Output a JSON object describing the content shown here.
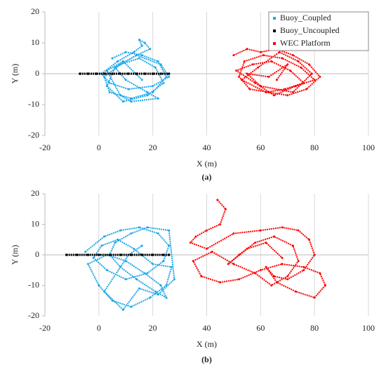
{
  "chart_data": [
    {
      "type": "scatter",
      "xlabel": "X  (m)",
      "ylabel": "Y  (m)",
      "caption": "(a)",
      "xlim": [
        -20,
        100
      ],
      "xticks": [
        -20,
        0,
        20,
        40,
        60,
        80,
        100
      ],
      "ylim": [
        -20,
        20
      ],
      "yticks": [
        -20,
        -10,
        0,
        10,
        20
      ],
      "grid": true,
      "legend": "upper right",
      "series": [
        {
          "name": "Buoy_Coupled",
          "color": "#1ea8e8",
          "x": [
            5,
            10,
            16,
            22,
            25,
            20,
            12,
            4,
            2,
            8,
            15,
            21,
            24,
            18,
            9,
            3,
            6,
            14,
            19,
            17,
            15,
            16,
            13,
            7,
            1,
            4,
            11,
            20,
            26,
            23,
            14,
            6,
            10,
            18,
            22,
            12,
            8,
            3,
            9,
            16
          ],
          "y": [
            5,
            7,
            6,
            4,
            -1,
            -6,
            -8,
            -6,
            -1,
            3,
            5,
            2,
            -3,
            -7,
            -9,
            -4,
            2,
            6,
            8,
            10,
            11,
            9,
            7,
            4,
            0,
            -3,
            -5,
            -4,
            -1,
            3,
            6,
            2,
            -2,
            -6,
            -8,
            -9,
            -7,
            1,
            4,
            -2
          ]
        },
        {
          "name": "Buoy_Uncoupled",
          "color": "#000000",
          "x": [
            -7,
            -4,
            -1,
            2,
            5,
            8,
            11,
            14,
            17,
            20,
            23,
            26
          ],
          "y": [
            0,
            0,
            0,
            0,
            0,
            0,
            0,
            0,
            0,
            0,
            0,
            0
          ]
        },
        {
          "name": "WEC Platform",
          "color": "#ff0000",
          "x": [
            50,
            55,
            60,
            66,
            72,
            78,
            82,
            77,
            70,
            63,
            56,
            52,
            54,
            61,
            68,
            75,
            80,
            73,
            65,
            58,
            51,
            57,
            64,
            71,
            76,
            69,
            62,
            53,
            59,
            67,
            74,
            79,
            72,
            60,
            55,
            63,
            70,
            66
          ],
          "y": [
            6,
            8,
            7,
            8,
            6,
            3,
            -1,
            -5,
            -7,
            -6,
            -5,
            -1,
            4,
            6,
            5,
            2,
            -2,
            -4,
            -7,
            -3,
            1,
            3,
            4,
            1,
            -3,
            -5,
            -6,
            -2,
            2,
            7,
            4,
            0,
            -6,
            -4,
            0,
            -1,
            3,
            -2
          ]
        }
      ]
    },
    {
      "type": "scatter",
      "xlabel": "X (m)",
      "ylabel": "Y (m)",
      "caption": "(b)",
      "xlim": [
        -20,
        100
      ],
      "xticks": [
        -20,
        0,
        20,
        40,
        60,
        80,
        100
      ],
      "ylim": [
        -20,
        20
      ],
      "yticks": [
        -20,
        -10,
        0,
        10,
        20
      ],
      "grid": true,
      "series": [
        {
          "color": "#1ea8e8",
          "x": [
            -5,
            2,
            8,
            15,
            22,
            26,
            24,
            18,
            10,
            3,
            -2,
            1,
            7,
            13,
            20,
            27,
            25,
            19,
            12,
            5,
            0,
            -4,
            3,
            10,
            17,
            23,
            25,
            21,
            14,
            8,
            4,
            6,
            12,
            18,
            26,
            28,
            22,
            15,
            9,
            2,
            11,
            16
          ],
          "y": [
            1,
            6,
            8,
            9,
            7,
            3,
            -2,
            -6,
            -8,
            -5,
            -1,
            3,
            5,
            2,
            -3,
            -4,
            -10,
            -14,
            -17,
            -15,
            -10,
            -3,
            0,
            -2,
            -6,
            -10,
            -14,
            -12,
            -8,
            -4,
            0,
            4,
            7,
            9,
            8,
            -8,
            -13,
            -11,
            -18,
            -12,
            0,
            3
          ]
        },
        {
          "color": "#000000",
          "x": [
            -12,
            -8,
            -4,
            0,
            4,
            8,
            12,
            16,
            20,
            24,
            26
          ],
          "y": [
            0,
            0,
            0,
            0,
            0,
            0,
            0,
            0,
            0,
            0,
            0
          ]
        },
        {
          "color": "#ff0000",
          "x": [
            44,
            47,
            45,
            40,
            36,
            34,
            40,
            50,
            60,
            68,
            74,
            78,
            80,
            76,
            70,
            65,
            62,
            66,
            73,
            80,
            84,
            82,
            76,
            68,
            60,
            52,
            45,
            38,
            35,
            42,
            50,
            58,
            64,
            70,
            74,
            72,
            65,
            58,
            52,
            48,
            55,
            62,
            68
          ],
          "y": [
            18,
            15,
            10,
            8,
            6,
            4,
            2,
            7,
            8,
            9,
            8,
            5,
            0,
            -5,
            -8,
            -7,
            -4,
            -9,
            -12,
            -14,
            -10,
            -6,
            -4,
            -3,
            -5,
            -8,
            -9,
            -7,
            -2,
            1,
            -3,
            -6,
            -10,
            -7,
            -2,
            3,
            6,
            4,
            0,
            -3,
            2,
            4,
            -1
          ]
        }
      ]
    }
  ]
}
